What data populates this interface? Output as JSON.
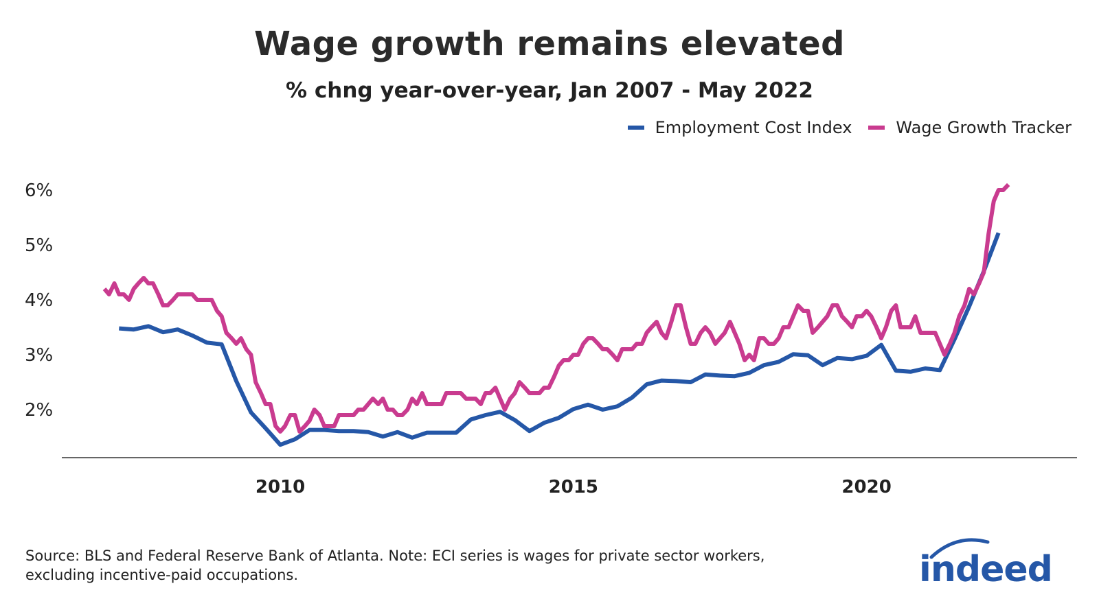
{
  "chart_data": {
    "type": "line",
    "title": "Wage growth remains elevated",
    "subtitle": "% chng year-over-year, Jan 2007 - May 2022",
    "xlabel": "",
    "ylabel": "",
    "xlim": [
      2007.0,
      2022.5
    ],
    "ylim": [
      1.15,
      6.1
    ],
    "x_ticks": [
      2010,
      2015,
      2020
    ],
    "x_tick_labels": [
      "2010",
      "2015",
      "2020"
    ],
    "y_ticks": [
      2,
      3,
      4,
      5,
      6
    ],
    "y_tick_labels": [
      "2%",
      "3%",
      "4%",
      "5%",
      "6%"
    ],
    "grid": false,
    "legend_position": "top-right",
    "series": [
      {
        "name": "Employment Cost Index",
        "color": "#2557a7",
        "points": [
          [
            2007.25,
            3.48
          ],
          [
            2007.5,
            3.46
          ],
          [
            2007.75,
            3.52
          ],
          [
            2008.0,
            3.41
          ],
          [
            2008.25,
            3.46
          ],
          [
            2008.5,
            3.35
          ],
          [
            2008.75,
            3.22
          ],
          [
            2009.0,
            3.19
          ],
          [
            2009.25,
            2.52
          ],
          [
            2009.5,
            1.95
          ],
          [
            2009.75,
            1.66
          ],
          [
            2010.0,
            1.36
          ],
          [
            2010.25,
            1.46
          ],
          [
            2010.5,
            1.63
          ],
          [
            2010.75,
            1.63
          ],
          [
            2011.0,
            1.61
          ],
          [
            2011.25,
            1.61
          ],
          [
            2011.5,
            1.59
          ],
          [
            2011.75,
            1.51
          ],
          [
            2012.0,
            1.59
          ],
          [
            2012.25,
            1.49
          ],
          [
            2012.5,
            1.58
          ],
          [
            2012.75,
            1.58
          ],
          [
            2013.0,
            1.58
          ],
          [
            2013.25,
            1.82
          ],
          [
            2013.5,
            1.9
          ],
          [
            2013.75,
            1.96
          ],
          [
            2014.0,
            1.81
          ],
          [
            2014.25,
            1.61
          ],
          [
            2014.5,
            1.76
          ],
          [
            2014.75,
            1.85
          ],
          [
            2015.0,
            2.01
          ],
          [
            2015.25,
            2.09
          ],
          [
            2015.5,
            2.0
          ],
          [
            2015.75,
            2.06
          ],
          [
            2016.0,
            2.22
          ],
          [
            2016.25,
            2.46
          ],
          [
            2016.5,
            2.53
          ],
          [
            2016.75,
            2.52
          ],
          [
            2017.0,
            2.5
          ],
          [
            2017.25,
            2.64
          ],
          [
            2017.5,
            2.62
          ],
          [
            2017.75,
            2.61
          ],
          [
            2018.0,
            2.67
          ],
          [
            2018.25,
            2.81
          ],
          [
            2018.5,
            2.87
          ],
          [
            2018.75,
            3.01
          ],
          [
            2019.0,
            2.99
          ],
          [
            2019.25,
            2.81
          ],
          [
            2019.5,
            2.94
          ],
          [
            2019.75,
            2.92
          ],
          [
            2020.0,
            2.98
          ],
          [
            2020.25,
            3.18
          ],
          [
            2020.5,
            2.71
          ],
          [
            2020.75,
            2.69
          ],
          [
            2021.0,
            2.75
          ],
          [
            2021.25,
            2.72
          ],
          [
            2021.5,
            3.28
          ],
          [
            2021.75,
            3.88
          ],
          [
            2022.0,
            4.52
          ],
          [
            2022.25,
            5.22
          ]
        ]
      },
      {
        "name": "Wage Growth Tracker",
        "color": "#c93b8f",
        "points": [
          [
            2007.0,
            4.2
          ],
          [
            2007.08,
            4.1
          ],
          [
            2007.17,
            4.3
          ],
          [
            2007.25,
            4.1
          ],
          [
            2007.33,
            4.1
          ],
          [
            2007.42,
            4.0
          ],
          [
            2007.5,
            4.2
          ],
          [
            2007.58,
            4.3
          ],
          [
            2007.67,
            4.4
          ],
          [
            2007.75,
            4.3
          ],
          [
            2007.83,
            4.3
          ],
          [
            2007.92,
            4.1
          ],
          [
            2008.0,
            3.9
          ],
          [
            2008.08,
            3.9
          ],
          [
            2008.17,
            4.0
          ],
          [
            2008.25,
            4.1
          ],
          [
            2008.33,
            4.1
          ],
          [
            2008.42,
            4.1
          ],
          [
            2008.5,
            4.1
          ],
          [
            2008.58,
            4.0
          ],
          [
            2008.67,
            4.0
          ],
          [
            2008.75,
            4.0
          ],
          [
            2008.83,
            4.0
          ],
          [
            2008.92,
            3.8
          ],
          [
            2009.0,
            3.7
          ],
          [
            2009.08,
            3.4
          ],
          [
            2009.17,
            3.3
          ],
          [
            2009.25,
            3.2
          ],
          [
            2009.33,
            3.3
          ],
          [
            2009.42,
            3.1
          ],
          [
            2009.5,
            3.0
          ],
          [
            2009.58,
            2.5
          ],
          [
            2009.67,
            2.3
          ],
          [
            2009.75,
            2.1
          ],
          [
            2009.83,
            2.1
          ],
          [
            2009.92,
            1.7
          ],
          [
            2010.0,
            1.6
          ],
          [
            2010.08,
            1.7
          ],
          [
            2010.17,
            1.9
          ],
          [
            2010.25,
            1.9
          ],
          [
            2010.33,
            1.6
          ],
          [
            2010.42,
            1.7
          ],
          [
            2010.5,
            1.8
          ],
          [
            2010.58,
            2.0
          ],
          [
            2010.67,
            1.9
          ],
          [
            2010.75,
            1.7
          ],
          [
            2010.83,
            1.7
          ],
          [
            2010.92,
            1.7
          ],
          [
            2011.0,
            1.9
          ],
          [
            2011.08,
            1.9
          ],
          [
            2011.17,
            1.9
          ],
          [
            2011.25,
            1.9
          ],
          [
            2011.33,
            2.0
          ],
          [
            2011.42,
            2.0
          ],
          [
            2011.5,
            2.1
          ],
          [
            2011.58,
            2.2
          ],
          [
            2011.67,
            2.1
          ],
          [
            2011.75,
            2.2
          ],
          [
            2011.83,
            2.0
          ],
          [
            2011.92,
            2.0
          ],
          [
            2012.0,
            1.9
          ],
          [
            2012.08,
            1.9
          ],
          [
            2012.17,
            2.0
          ],
          [
            2012.25,
            2.2
          ],
          [
            2012.33,
            2.1
          ],
          [
            2012.42,
            2.3
          ],
          [
            2012.5,
            2.1
          ],
          [
            2012.58,
            2.1
          ],
          [
            2012.67,
            2.1
          ],
          [
            2012.75,
            2.1
          ],
          [
            2012.83,
            2.3
          ],
          [
            2012.92,
            2.3
          ],
          [
            2013.0,
            2.3
          ],
          [
            2013.08,
            2.3
          ],
          [
            2013.17,
            2.2
          ],
          [
            2013.25,
            2.2
          ],
          [
            2013.33,
            2.2
          ],
          [
            2013.42,
            2.1
          ],
          [
            2013.5,
            2.3
          ],
          [
            2013.58,
            2.3
          ],
          [
            2013.67,
            2.4
          ],
          [
            2013.75,
            2.2
          ],
          [
            2013.83,
            2.0
          ],
          [
            2013.92,
            2.2
          ],
          [
            2014.0,
            2.3
          ],
          [
            2014.08,
            2.5
          ],
          [
            2014.17,
            2.4
          ],
          [
            2014.25,
            2.3
          ],
          [
            2014.33,
            2.3
          ],
          [
            2014.42,
            2.3
          ],
          [
            2014.5,
            2.4
          ],
          [
            2014.58,
            2.4
          ],
          [
            2014.67,
            2.6
          ],
          [
            2014.75,
            2.8
          ],
          [
            2014.83,
            2.9
          ],
          [
            2014.92,
            2.9
          ],
          [
            2015.0,
            3.0
          ],
          [
            2015.08,
            3.0
          ],
          [
            2015.17,
            3.2
          ],
          [
            2015.25,
            3.3
          ],
          [
            2015.33,
            3.3
          ],
          [
            2015.42,
            3.2
          ],
          [
            2015.5,
            3.1
          ],
          [
            2015.58,
            3.1
          ],
          [
            2015.67,
            3.0
          ],
          [
            2015.75,
            2.9
          ],
          [
            2015.83,
            3.1
          ],
          [
            2015.92,
            3.1
          ],
          [
            2016.0,
            3.1
          ],
          [
            2016.08,
            3.2
          ],
          [
            2016.17,
            3.2
          ],
          [
            2016.25,
            3.4
          ],
          [
            2016.33,
            3.5
          ],
          [
            2016.42,
            3.6
          ],
          [
            2016.5,
            3.4
          ],
          [
            2016.58,
            3.3
          ],
          [
            2016.67,
            3.6
          ],
          [
            2016.75,
            3.9
          ],
          [
            2016.83,
            3.9
          ],
          [
            2016.92,
            3.5
          ],
          [
            2017.0,
            3.2
          ],
          [
            2017.08,
            3.2
          ],
          [
            2017.17,
            3.4
          ],
          [
            2017.25,
            3.5
          ],
          [
            2017.33,
            3.4
          ],
          [
            2017.42,
            3.2
          ],
          [
            2017.5,
            3.3
          ],
          [
            2017.58,
            3.4
          ],
          [
            2017.67,
            3.6
          ],
          [
            2017.75,
            3.4
          ],
          [
            2017.83,
            3.2
          ],
          [
            2017.92,
            2.9
          ],
          [
            2018.0,
            3.0
          ],
          [
            2018.08,
            2.9
          ],
          [
            2018.17,
            3.3
          ],
          [
            2018.25,
            3.3
          ],
          [
            2018.33,
            3.2
          ],
          [
            2018.42,
            3.2
          ],
          [
            2018.5,
            3.3
          ],
          [
            2018.58,
            3.5
          ],
          [
            2018.67,
            3.5
          ],
          [
            2018.75,
            3.7
          ],
          [
            2018.83,
            3.9
          ],
          [
            2018.92,
            3.8
          ],
          [
            2019.0,
            3.8
          ],
          [
            2019.08,
            3.4
          ],
          [
            2019.17,
            3.5
          ],
          [
            2019.25,
            3.6
          ],
          [
            2019.33,
            3.7
          ],
          [
            2019.42,
            3.9
          ],
          [
            2019.5,
            3.9
          ],
          [
            2019.58,
            3.7
          ],
          [
            2019.67,
            3.6
          ],
          [
            2019.75,
            3.5
          ],
          [
            2019.83,
            3.7
          ],
          [
            2019.92,
            3.7
          ],
          [
            2020.0,
            3.8
          ],
          [
            2020.08,
            3.7
          ],
          [
            2020.17,
            3.5
          ],
          [
            2020.25,
            3.3
          ],
          [
            2020.33,
            3.5
          ],
          [
            2020.42,
            3.8
          ],
          [
            2020.5,
            3.9
          ],
          [
            2020.58,
            3.5
          ],
          [
            2020.67,
            3.5
          ],
          [
            2020.75,
            3.5
          ],
          [
            2020.83,
            3.7
          ],
          [
            2020.92,
            3.4
          ],
          [
            2021.0,
            3.4
          ],
          [
            2021.08,
            3.4
          ],
          [
            2021.17,
            3.4
          ],
          [
            2021.25,
            3.2
          ],
          [
            2021.33,
            3.0
          ],
          [
            2021.42,
            3.2
          ],
          [
            2021.5,
            3.4
          ],
          [
            2021.58,
            3.7
          ],
          [
            2021.67,
            3.9
          ],
          [
            2021.75,
            4.2
          ],
          [
            2021.83,
            4.1
          ],
          [
            2021.92,
            4.3
          ],
          [
            2022.0,
            4.5
          ],
          [
            2022.08,
            5.2
          ],
          [
            2022.17,
            5.8
          ],
          [
            2022.25,
            6.0
          ],
          [
            2022.33,
            6.0
          ],
          [
            2022.42,
            6.1
          ]
        ]
      }
    ]
  },
  "footer": {
    "source_line1": "Source: BLS and Federal Reserve Bank of Atlanta. Note: ECI series is wages for private sector workers,",
    "source_line2": " excluding incentive-paid occupations."
  },
  "brand": {
    "logo_text": "indeed",
    "logo_color": "#2557a7"
  }
}
